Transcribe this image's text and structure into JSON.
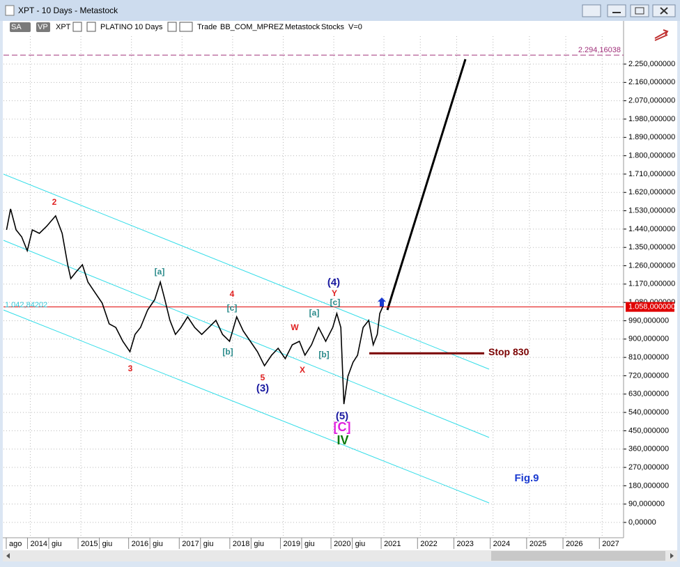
{
  "window": {
    "title": "XPT - 10 Days - Metastock"
  },
  "toolbar": {
    "items": [
      "SA",
      "VP",
      "XPT",
      "PLATINO",
      "10 Days",
      "Trade",
      "BB_COM_MPREZ",
      "Metastock",
      "Stocks",
      "V=0"
    ]
  },
  "chart_data": {
    "type": "line",
    "color": "#000000",
    "grid": true,
    "x": [
      2013.53,
      2013.61,
      2013.72,
      2013.83,
      2013.94,
      2014.04,
      2014.18,
      2014.32,
      2014.5,
      2014.63,
      2014.74,
      2014.8,
      2014.91,
      2015.03,
      2015.14,
      2015.28,
      2015.42,
      2015.56,
      2015.69,
      2015.83,
      2015.97,
      2016.07,
      2016.18,
      2016.32,
      2016.46,
      2016.57,
      2016.66,
      2016.76,
      2016.87,
      2016.98,
      2017.11,
      2017.25,
      2017.39,
      2017.53,
      2017.67,
      2017.8,
      2017.94,
      2018.08,
      2018.21,
      2018.35,
      2018.49,
      2018.63,
      2018.77,
      2018.9,
      2019.04,
      2019.18,
      2019.32,
      2019.43,
      2019.56,
      2019.7,
      2019.84,
      2019.98,
      2020.06,
      2020.14,
      2020.2,
      2020.28,
      2020.38,
      2020.47,
      2020.58,
      2020.69,
      2020.78,
      2020.86,
      2020.91,
      2020.97
    ],
    "values": [
      1436,
      1539,
      1436,
      1402,
      1334,
      1436,
      1419,
      1453,
      1505,
      1419,
      1265,
      1197,
      1231,
      1265,
      1180,
      1128,
      1077,
      975,
      957,
      889,
      838,
      923,
      957,
      1043,
      1094,
      1180,
      1094,
      992,
      923,
      957,
      1009,
      957,
      923,
      957,
      992,
      923,
      889,
      1009,
      940,
      889,
      838,
      769,
      821,
      855,
      804,
      872,
      889,
      821,
      872,
      957,
      889,
      957,
      1026,
      957,
      581,
      718,
      786,
      821,
      957,
      992,
      872,
      923,
      1026,
      1060
    ],
    "xlim": [
      2013.47,
      2027.6
    ],
    "xticks": [
      {
        "value": 2013.58,
        "label": "ago"
      },
      2014,
      {
        "value": 2014.42,
        "label": "giu"
      },
      2015,
      {
        "value": 2015.42,
        "label": "giu"
      },
      2016,
      {
        "value": 2016.42,
        "label": "giu"
      },
      2017,
      {
        "value": 2017.42,
        "label": "giu"
      },
      2018,
      {
        "value": 2018.42,
        "label": "giu"
      },
      2019,
      {
        "value": 2019.42,
        "label": "giu"
      },
      2020,
      {
        "value": 2020.42,
        "label": "giu"
      },
      2021,
      2022,
      2023,
      2024,
      2025,
      2026,
      2027
    ],
    "ylim": [
      -35,
      2310
    ],
    "yticks": [
      {
        "value": 0,
        "label": "0,00000"
      },
      {
        "value": 90,
        "label": "90,000000"
      },
      {
        "value": 180,
        "label": "180,000000"
      },
      {
        "value": 270,
        "label": "270,000000"
      },
      {
        "value": 360,
        "label": "360,000000"
      },
      {
        "value": 450,
        "label": "450,000000"
      },
      {
        "value": 540,
        "label": "540,000000"
      },
      {
        "value": 630,
        "label": "630,000000"
      },
      {
        "value": 720,
        "label": "720,000000"
      },
      {
        "value": 810,
        "label": "810,000000"
      },
      {
        "value": 900,
        "label": "900,000000"
      },
      {
        "value": 990,
        "label": "990,000000"
      },
      {
        "value": 1080,
        "label": "1.080,000000"
      },
      {
        "value": 1170,
        "label": "1.170,000000"
      },
      {
        "value": 1260,
        "label": "1.260,000000"
      },
      {
        "value": 1350,
        "label": "1.350,000000"
      },
      {
        "value": 1440,
        "label": "1.440,000000"
      },
      {
        "value": 1530,
        "label": "1.530,000000"
      },
      {
        "value": 1620,
        "label": "1.620,000000"
      },
      {
        "value": 1710,
        "label": "1.710,000000"
      },
      {
        "value": 1800,
        "label": "1.800,000000"
      },
      {
        "value": 1890,
        "label": "1.890,000000"
      },
      {
        "value": 1980,
        "label": "1.980,000000"
      },
      {
        "value": 2070,
        "label": "2.070,000000"
      },
      {
        "value": 2160,
        "label": "2.160,000000"
      },
      {
        "value": 2250,
        "label": "2.250,000000"
      }
    ],
    "hlines": [
      {
        "value": 1058,
        "label": "1.058,000000",
        "color": "#e00000"
      },
      {
        "value": 2294.16038,
        "label": "2.294,16038",
        "color": "#a0307a"
      }
    ],
    "stop": {
      "value": 830,
      "label": "Stop 830",
      "color": "#7a0000"
    },
    "left_label": "1.042,84202",
    "annotations": [
      {
        "text": "2",
        "color": "#e02020"
      },
      {
        "text": "3",
        "color": "#e02020"
      },
      {
        "text": "[a]",
        "color": "#2a8a8a"
      },
      {
        "text": "4",
        "color": "#e02020"
      },
      {
        "text": "[c]",
        "color": "#2a8a8a"
      },
      {
        "text": "[b]",
        "color": "#2a8a8a"
      },
      {
        "text": "5",
        "color": "#e02020"
      },
      {
        "text": "(3)",
        "color": "#1a1aa0"
      },
      {
        "text": "W",
        "color": "#e02020"
      },
      {
        "text": "X",
        "color": "#e02020"
      },
      {
        "text": "[a]",
        "color": "#2a8a8a"
      },
      {
        "text": "[b]",
        "color": "#2a8a8a"
      },
      {
        "text": "(4)",
        "color": "#1a1aa0"
      },
      {
        "text": "Y",
        "color": "#e02020"
      },
      {
        "text": "[c]",
        "color": "#2a8a8a"
      },
      {
        "text": "(5)",
        "color": "#1a1aa0"
      },
      {
        "text": "[C]",
        "color": "#e020e0"
      },
      {
        "text": "IV",
        "color": "#0a7a0a"
      },
      {
        "text": "Fig.9",
        "color": "#1a3ad0"
      }
    ]
  }
}
